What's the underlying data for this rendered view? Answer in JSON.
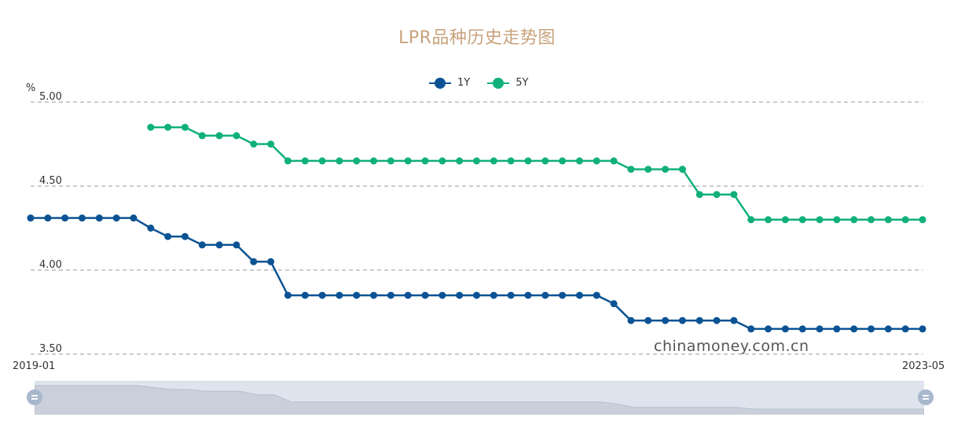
{
  "chart_data": {
    "type": "line",
    "title": "LPR品种历史走势图",
    "y_unit": "%",
    "ylim": [
      3.5,
      5.0
    ],
    "y_ticks": [
      "5.00",
      "4.50",
      "4.00",
      "3.50"
    ],
    "x_start_label": "2019-01",
    "x_end_label": "2023-05",
    "grid": "dashed horizontal",
    "legend_position": "top-center",
    "series": [
      {
        "name": "1Y",
        "color": "#0b5394",
        "values": [
          4.31,
          4.31,
          4.31,
          4.31,
          4.31,
          4.31,
          4.31,
          4.25,
          4.2,
          4.2,
          4.15,
          4.15,
          4.15,
          4.05,
          4.05,
          3.85,
          3.85,
          3.85,
          3.85,
          3.85,
          3.85,
          3.85,
          3.85,
          3.85,
          3.85,
          3.85,
          3.85,
          3.85,
          3.85,
          3.85,
          3.85,
          3.85,
          3.85,
          3.85,
          3.8,
          3.7,
          3.7,
          3.7,
          3.7,
          3.7,
          3.7,
          3.7,
          3.65,
          3.65,
          3.65,
          3.65,
          3.65,
          3.65,
          3.65,
          3.65,
          3.65,
          3.65,
          3.65
        ]
      },
      {
        "name": "5Y",
        "color": "#10b07a",
        "values": [
          null,
          null,
          null,
          null,
          null,
          null,
          null,
          4.85,
          4.85,
          4.85,
          4.8,
          4.8,
          4.8,
          4.75,
          4.75,
          4.65,
          4.65,
          4.65,
          4.65,
          4.65,
          4.65,
          4.65,
          4.65,
          4.65,
          4.65,
          4.65,
          4.65,
          4.65,
          4.65,
          4.65,
          4.65,
          4.65,
          4.65,
          4.65,
          4.65,
          4.6,
          4.6,
          4.6,
          4.6,
          4.45,
          4.45,
          4.45,
          4.3,
          4.3,
          4.3,
          4.3,
          4.3,
          4.3,
          4.3,
          4.3,
          4.3,
          4.3,
          4.3
        ]
      }
    ]
  },
  "watermark": "chinamoney.com.cn"
}
